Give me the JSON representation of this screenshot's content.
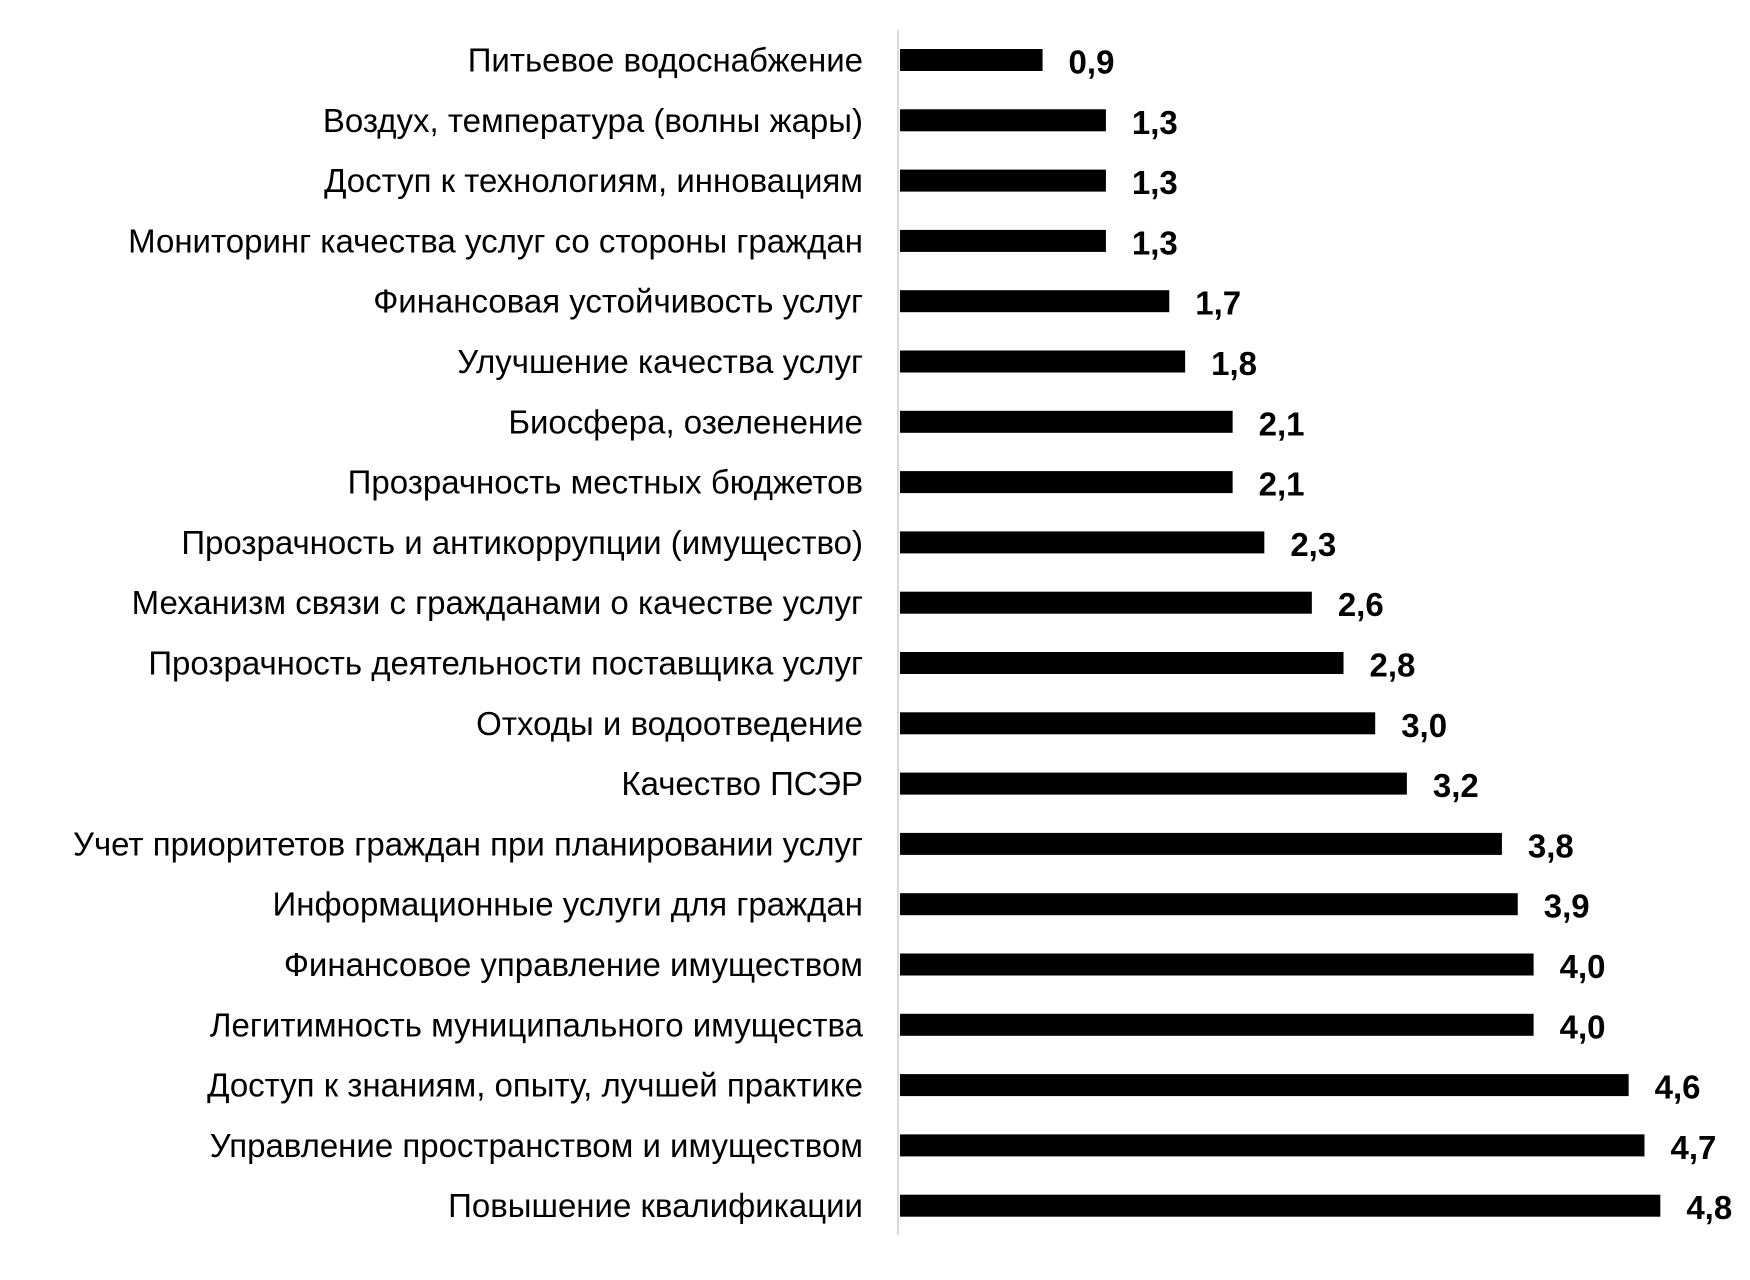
{
  "chart_data": {
    "type": "bar",
    "orientation": "horizontal",
    "title": "",
    "xlabel": "",
    "ylabel": "",
    "grid": false,
    "legend": "none",
    "bar_color": "#000000",
    "axis_color": "#d9d9d9",
    "xlim": [
      0,
      5
    ],
    "categories": [
      "Питьевое водоснабжение",
      "Воздух, температура (волны жары)",
      "Доступ к технологиям, инновациям",
      "Мониторинг качества услуг со стороны граждан",
      "Финансовая устойчивость услуг",
      "Улучшение качества услуг",
      "Биосфера, озеленение",
      "Прозрачность местных бюджетов",
      "Прозрачность и антикоррупции (имущество)",
      "Механизм связи с гражданами о качестве услуг",
      "Прозрачность деятельности поставщика услуг",
      "Отходы и водоотведение",
      "Качество ПСЭР",
      "Учет приоритетов граждан при планировании  услуг",
      "Информационные услуги для граждан",
      "Финансовое управление имуществом",
      "Легитимность муниципального имущества",
      "Доступ к знаниям, опыту, лучшей практике",
      "Управление пространством и имуществом",
      "Повышение квалификации"
    ],
    "values": [
      0.9,
      1.3,
      1.3,
      1.3,
      1.7,
      1.8,
      2.1,
      2.1,
      2.3,
      2.6,
      2.8,
      3.0,
      3.2,
      3.8,
      3.9,
      4.0,
      4.0,
      4.6,
      4.7,
      4.8
    ],
    "value_labels": [
      "0,9",
      "1,3",
      "1,3",
      "1,3",
      "1,7",
      "1,8",
      "2,1",
      "2,1",
      "2,3",
      "2,6",
      "2,8",
      "3,0",
      "3,2",
      "3,8",
      "3,9",
      "4,0",
      "4,0",
      "4,6",
      "4,7",
      "4,8"
    ]
  }
}
